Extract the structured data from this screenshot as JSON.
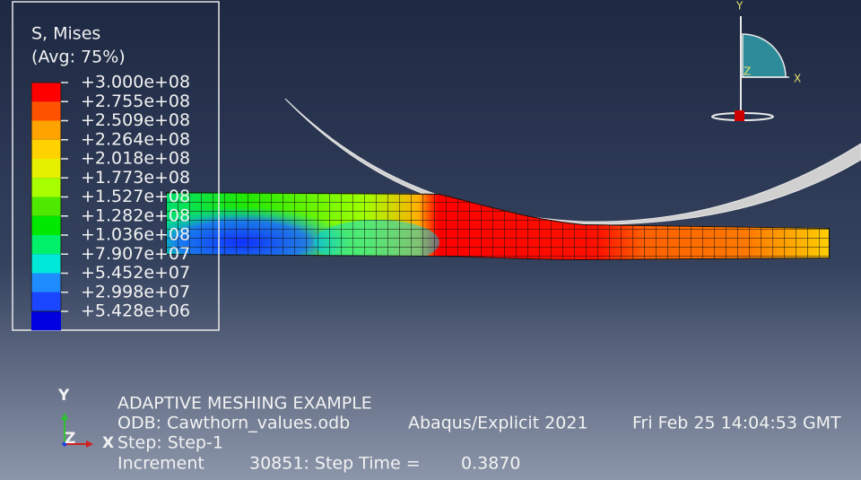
{
  "legend": {
    "title": [
      "S, Mises",
      "(Avg: 75%)"
    ],
    "labels": [
      "+3.000e+08",
      "+2.755e+08",
      "+2.509e+08",
      "+2.264e+08",
      "+2.018e+08",
      "+1.773e+08",
      "+1.527e+08",
      "+1.282e+08",
      "+1.036e+08",
      "+7.907e+07",
      "+5.452e+07",
      "+2.998e+07",
      "+5.428e+06"
    ],
    "colors": [
      "#ff0000",
      "#ff5200",
      "#ffa300",
      "#ffd200",
      "#e5f000",
      "#a8ff00",
      "#4fe800",
      "#00e800",
      "#00f06a",
      "#00e8d8",
      "#1e8cff",
      "#1a46ff",
      "#0000e0"
    ]
  },
  "view_triad": {
    "y": "Y",
    "z": "Z",
    "x": "X"
  },
  "corner_triad": {
    "y": "Y",
    "z": "Z",
    "x": "X"
  },
  "info": {
    "title": "ADAPTIVE MESHING EXAMPLE",
    "odb": "ODB: Cawthorn_values.odb",
    "solver": "Abaqus/Explicit 2021",
    "date": "Fri Feb 25 14:04:53 GMT",
    "step": "Step: Step-1",
    "increment_label": "Increment",
    "increment": "30851: Step Time =",
    "step_time": "0.3870"
  }
}
